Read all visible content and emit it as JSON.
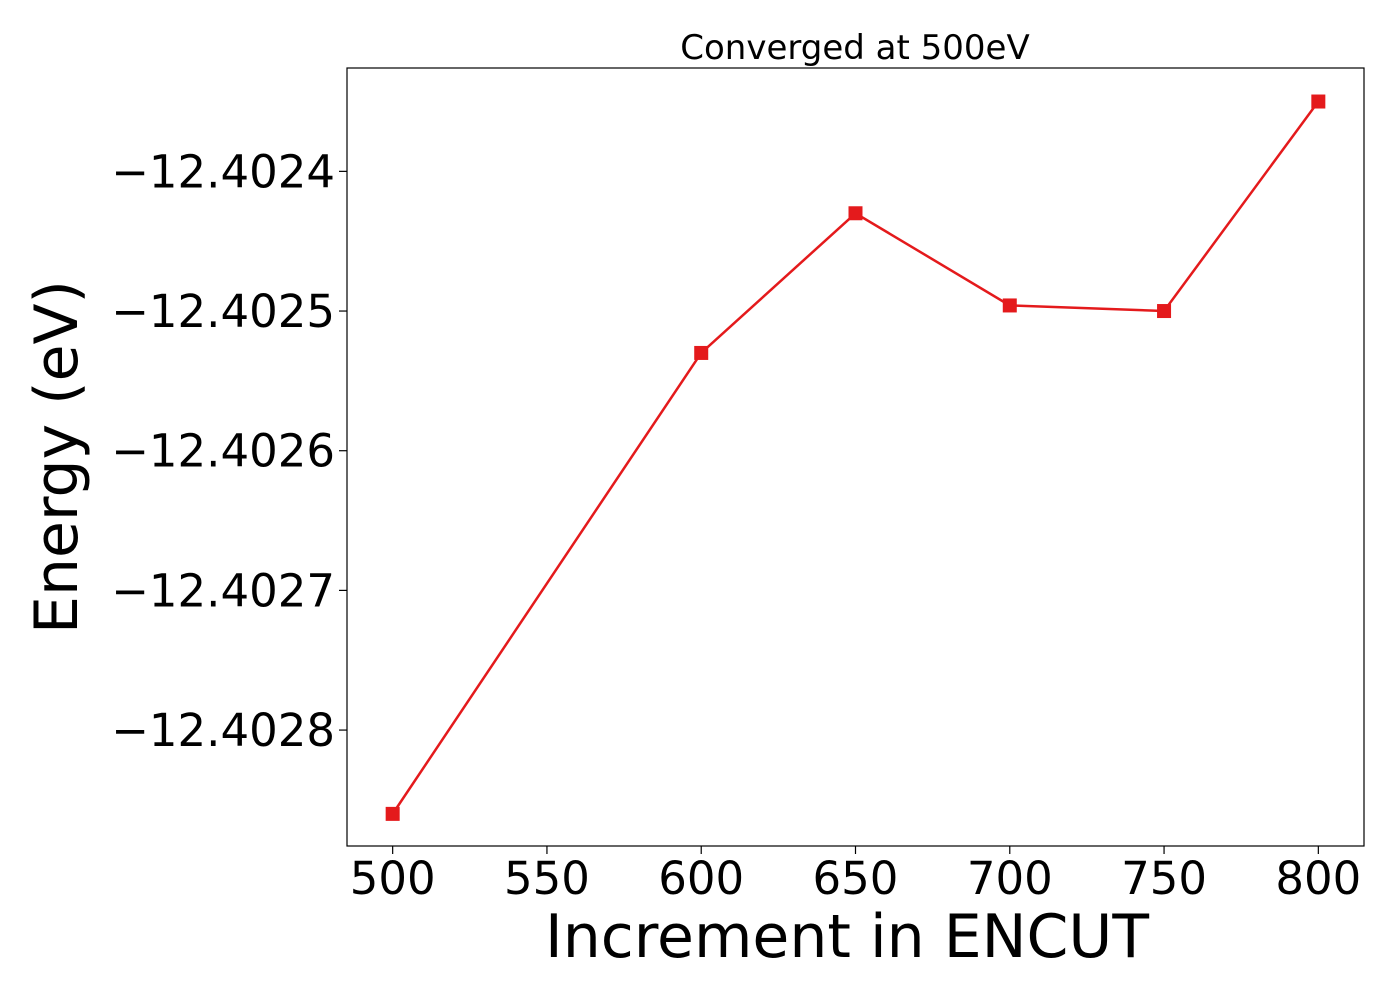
{
  "chart_data": {
    "type": "line",
    "title": "Converged at 500eV",
    "xlabel": "Increment in ENCUT",
    "ylabel": "Energy (eV)",
    "x": [
      500,
      600,
      650,
      700,
      750,
      800
    ],
    "series": [
      {
        "values": [
          -12.40286,
          -12.40253,
          -12.40243,
          -12.402496,
          -12.4025,
          -12.40235
        ],
        "color": "#e41a1c",
        "marker": "square"
      }
    ],
    "xlim": [
      485.2,
      814.8
    ],
    "ylim": [
      -12.402883,
      -12.402326
    ],
    "xticks": [
      500,
      550,
      600,
      650,
      700,
      750,
      800
    ],
    "yticks": [
      -12.4028,
      -12.4027,
      -12.4026,
      -12.4025,
      -12.4024
    ],
    "ytick_labels": [
      "−12.4028",
      "−12.4027",
      "−12.4026",
      "−12.4025",
      "−12.4024"
    ],
    "grid": false,
    "legend": "none"
  }
}
